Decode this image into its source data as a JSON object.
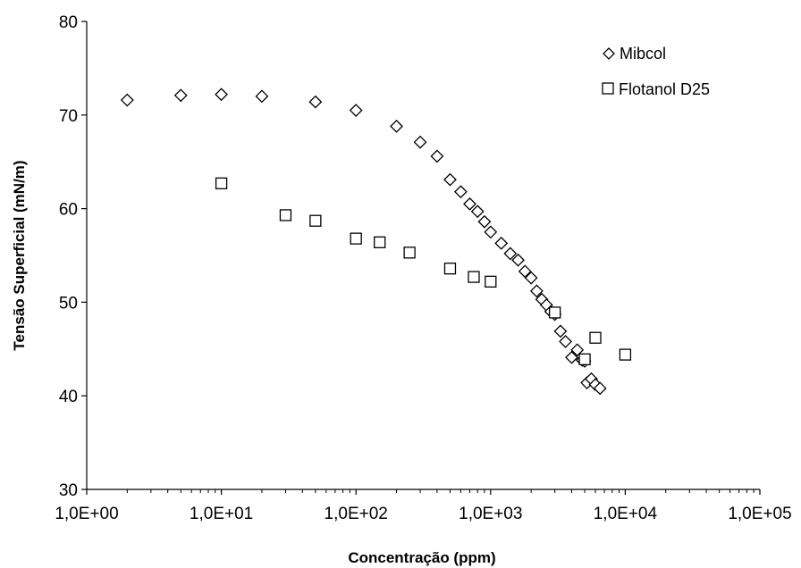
{
  "chart_data": {
    "type": "scatter",
    "xscale": "log",
    "xlim": [
      1,
      100000
    ],
    "ylim": [
      30,
      80
    ],
    "xlabel": "Concentração (ppm)",
    "ylabel": "Tensão Superficial (mN/m)",
    "x_tick_values": [
      1,
      10,
      100,
      1000,
      10000,
      100000
    ],
    "x_tick_labels": [
      "1,0E+00",
      "1,0E+01",
      "1,0E+02",
      "1,0E+03",
      "1,0E+04",
      "1,0E+05"
    ],
    "y_tick_values": [
      30,
      40,
      50,
      60,
      70,
      80
    ],
    "y_tick_labels": [
      "30",
      "40",
      "50",
      "60",
      "70",
      "80"
    ],
    "grid": false,
    "legend_position": "top-right",
    "series": [
      {
        "name": "Mibcol",
        "marker": "diamond",
        "x": [
          2,
          5,
          10,
          20,
          50,
          100,
          200,
          300,
          400,
          500,
          600,
          700,
          800,
          900,
          1000,
          1200,
          1400,
          1600,
          1800,
          2000,
          2200,
          2400,
          2600,
          2800,
          3000,
          3300,
          3600,
          4000,
          4400,
          4800,
          5000,
          5200,
          5600,
          6000,
          6500
        ],
        "y": [
          71.6,
          72.1,
          72.2,
          72.0,
          71.4,
          70.5,
          68.8,
          67.1,
          65.6,
          63.1,
          61.8,
          60.5,
          59.7,
          58.6,
          57.5,
          56.3,
          55.2,
          54.5,
          53.3,
          52.6,
          51.2,
          50.3,
          49.7,
          49.0,
          48.7,
          46.9,
          45.8,
          44.1,
          44.9,
          43.8,
          43.7,
          41.4,
          41.8,
          41.2,
          40.8
        ]
      },
      {
        "name": "Flotanol D25",
        "marker": "square",
        "x": [
          10,
          30,
          50,
          100,
          150,
          250,
          500,
          750,
          1000,
          3000,
          5000,
          6000,
          10000
        ],
        "y": [
          62.7,
          59.3,
          58.7,
          56.8,
          56.4,
          55.3,
          53.6,
          52.7,
          52.2,
          48.9,
          43.9,
          46.2,
          44.4
        ]
      }
    ]
  },
  "style": {
    "marker_stroke": "#000000",
    "marker_fill": "#ffffff",
    "axis_color": "#000000"
  }
}
